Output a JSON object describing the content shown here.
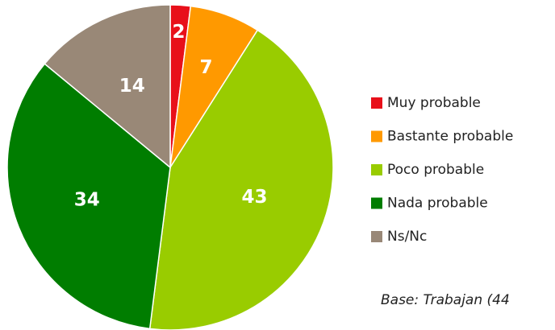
{
  "chart_data": {
    "type": "pie",
    "categories": [
      "Muy probable",
      "Bastante probable",
      "Poco probable",
      "Nada probable",
      "Ns/Nc"
    ],
    "values": [
      2,
      7,
      43,
      34,
      14
    ],
    "colors": [
      "#e8101a",
      "#ff9900",
      "#99cc00",
      "#007d00",
      "#998877"
    ],
    "annotation": "Base: Trabajan (44"
  }
}
